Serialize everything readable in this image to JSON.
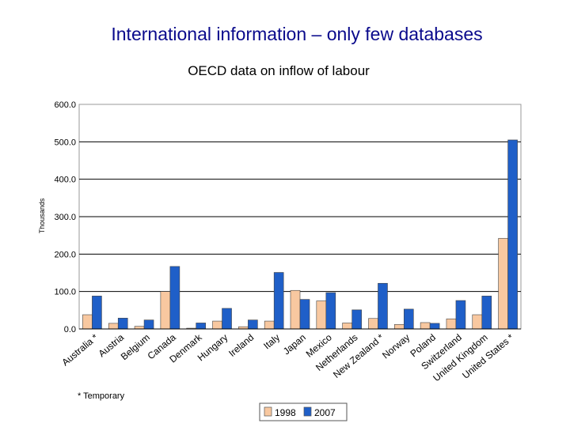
{
  "slide": {
    "title": "International information – only few databases"
  },
  "chart_data": {
    "type": "bar",
    "title": "OECD data on inflow of labour",
    "xlabel": "",
    "ylabel": "Thousands",
    "ylim": [
      0,
      600
    ],
    "yticks": [
      "0.0",
      "100.0",
      "200.0",
      "300.0",
      "400.0",
      "500.0",
      "600.0"
    ],
    "grid": true,
    "legend_position": "bottom",
    "categories": [
      "Australia *",
      "Austria",
      "Belgium",
      "Canada",
      "Denmark",
      "Hungary",
      "Ireland",
      "Italy",
      "Japan",
      "Mexico",
      "Netherlands",
      "New Zealand *",
      "Norway",
      "Poland",
      "Switzerland",
      "United Kingdom",
      "United States *"
    ],
    "series": [
      {
        "name": "1998",
        "color": "#f8c8a0",
        "values": [
          38,
          15,
          7,
          100,
          2,
          21,
          6,
          21,
          103,
          75,
          16,
          28,
          12,
          17,
          27,
          38,
          242
        ]
      },
      {
        "name": "2007",
        "color": "#1f5fc8",
        "values": [
          88,
          29,
          24,
          167,
          16,
          55,
          24,
          151,
          79,
          97,
          51,
          122,
          53,
          15,
          76,
          88,
          505
        ]
      }
    ],
    "footnote": "* Temporary"
  }
}
